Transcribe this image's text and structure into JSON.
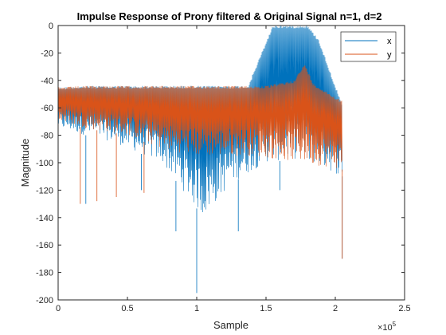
{
  "chart_data": {
    "type": "line",
    "title": "Impulse Response of Prony filtered & Original Signal  n=1, d=2",
    "xlabel": "Sample",
    "ylabel": "Magnitude",
    "xlim": [
      0,
      250000
    ],
    "ylim": [
      -200,
      0
    ],
    "x_exponent_label": "×10",
    "x_exponent_power": "5",
    "xticks": [
      0,
      50000,
      100000,
      150000,
      200000,
      250000
    ],
    "xtick_labels": [
      "0",
      "0.5",
      "1",
      "1.5",
      "2",
      "2.5"
    ],
    "yticks": [
      0,
      -20,
      -40,
      -60,
      -80,
      -100,
      -120,
      -140,
      -160,
      -180,
      -200
    ],
    "ytick_labels": [
      "0",
      "-20",
      "-40",
      "-60",
      "-80",
      "-100",
      "-120",
      "-140",
      "-160",
      "-180",
      "-200"
    ],
    "legend_position": "top-right",
    "series": [
      {
        "name": "x",
        "color": "#0072BD",
        "upper_envelope": [
          [
            0,
            -45
          ],
          [
            20000,
            -44
          ],
          [
            50000,
            -44
          ],
          [
            80000,
            -44
          ],
          [
            120000,
            -44
          ],
          [
            137000,
            -44
          ],
          [
            150000,
            -12
          ],
          [
            155000,
            0
          ],
          [
            180000,
            0
          ],
          [
            188000,
            -10
          ],
          [
            205000,
            -58
          ]
        ],
        "lower_envelope": [
          [
            0,
            -75
          ],
          [
            40000,
            -85
          ],
          [
            75000,
            -100
          ],
          [
            90000,
            -120
          ],
          [
            105000,
            -140
          ],
          [
            125000,
            -115
          ],
          [
            150000,
            -100
          ],
          [
            175000,
            -97
          ],
          [
            205000,
            -110
          ]
        ],
        "extreme_dips": [
          [
            20000,
            -130
          ],
          [
            60000,
            -120
          ],
          [
            85000,
            -150
          ],
          [
            100000,
            -195
          ],
          [
            130000,
            -150
          ],
          [
            160000,
            -120
          ],
          [
            205000,
            -170
          ]
        ]
      },
      {
        "name": "y",
        "color": "#D95319",
        "upper_envelope": [
          [
            0,
            -45
          ],
          [
            20000,
            -44
          ],
          [
            50000,
            -44
          ],
          [
            80000,
            -44
          ],
          [
            120000,
            -44
          ],
          [
            150000,
            -44
          ],
          [
            170000,
            -40
          ],
          [
            178000,
            -28
          ],
          [
            184000,
            -42
          ],
          [
            205000,
            -55
          ]
        ],
        "lower_envelope": [
          [
            0,
            -70
          ],
          [
            20000,
            -75
          ],
          [
            50000,
            -80
          ],
          [
            75000,
            -90
          ],
          [
            100000,
            -95
          ],
          [
            140000,
            -95
          ],
          [
            175000,
            -100
          ],
          [
            205000,
            -105
          ]
        ],
        "extreme_dips": [
          [
            16000,
            -130
          ],
          [
            28000,
            -128
          ],
          [
            42000,
            -125
          ],
          [
            62000,
            -122
          ],
          [
            205000,
            -170
          ]
        ]
      }
    ]
  }
}
